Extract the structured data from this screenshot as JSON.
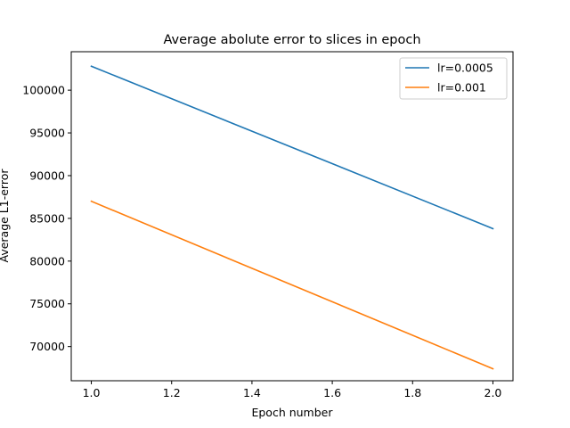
{
  "chart_data": {
    "type": "line",
    "title": "Average abolute error to slices in epoch",
    "xlabel": "Epoch number",
    "ylabel": "Average L1-error",
    "xlim": [
      0.95,
      2.05
    ],
    "ylim": [
      66000,
      104500
    ],
    "x_ticks": [
      1.0,
      1.2,
      1.4,
      1.6,
      1.8,
      2.0
    ],
    "x_tick_labels": [
      "1.0",
      "1.2",
      "1.4",
      "1.6",
      "1.8",
      "2.0"
    ],
    "y_ticks": [
      70000,
      75000,
      80000,
      85000,
      90000,
      95000,
      100000
    ],
    "y_tick_labels": [
      "70000",
      "75000",
      "80000",
      "85000",
      "90000",
      "95000",
      "100000"
    ],
    "grid": false,
    "legend_position": "top-right",
    "series": [
      {
        "name": "lr=0.0005",
        "color": "#1f77b4",
        "x": [
          1.0,
          2.0
        ],
        "y": [
          102800,
          83800
        ]
      },
      {
        "name": "lr=0.001",
        "color": "#ff7f0e",
        "x": [
          1.0,
          2.0
        ],
        "y": [
          87000,
          67400
        ]
      }
    ]
  }
}
